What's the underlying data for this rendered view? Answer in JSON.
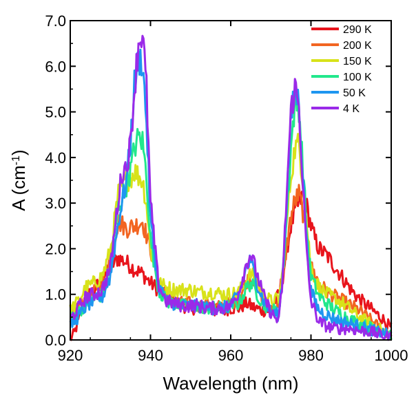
{
  "chart_data": {
    "type": "line",
    "title": "",
    "xlabel": "Wavelength (nm)",
    "ylabel_base": "A (cm",
    "ylabel_sup": "-1",
    "ylabel_close": ")",
    "xlim": [
      920,
      1000
    ],
    "ylim": [
      0,
      7
    ],
    "xticks": [
      920,
      940,
      960,
      980,
      1000
    ],
    "xtick_labels": [
      "920",
      "940",
      "960",
      "980",
      "1000"
    ],
    "yticks": [
      0,
      1,
      2,
      3,
      4,
      5,
      6,
      7
    ],
    "ytick_labels": [
      "0.0",
      "1.0",
      "2.0",
      "3.0",
      "4.0",
      "5.0",
      "6.0",
      "7.0"
    ],
    "grid": false,
    "legend_position": "top-right",
    "series": [
      {
        "name": "290 K",
        "color": "#e8141c",
        "x": [
          920,
          921,
          922,
          923,
          924,
          926,
          928,
          930,
          932,
          934,
          936,
          938,
          940,
          942,
          944,
          946,
          948,
          950,
          952,
          954,
          956,
          958,
          960,
          962,
          964,
          966,
          968,
          970,
          972,
          973,
          974,
          975,
          976,
          977,
          978,
          979,
          980,
          981,
          982,
          984,
          986,
          988,
          990,
          992,
          994,
          996,
          998,
          1000
        ],
        "y": [
          0.0,
          0.15,
          0.4,
          0.7,
          0.95,
          1.1,
          1.35,
          1.6,
          1.8,
          1.7,
          1.55,
          1.45,
          1.25,
          1.1,
          0.95,
          0.8,
          0.75,
          0.7,
          0.7,
          0.7,
          0.65,
          0.65,
          0.7,
          0.7,
          0.8,
          0.7,
          0.65,
          0.65,
          1.0,
          1.4,
          2.0,
          2.5,
          2.8,
          3.0,
          3.15,
          2.9,
          2.5,
          2.2,
          2.0,
          1.85,
          1.6,
          1.35,
          1.1,
          0.9,
          0.75,
          0.6,
          0.45,
          0.25
        ]
      },
      {
        "name": "200 K",
        "color": "#f26522",
        "x": [
          920,
          921,
          922,
          924,
          926,
          928,
          930,
          932,
          934,
          936,
          938,
          940,
          942,
          944,
          946,
          948,
          950,
          952,
          954,
          956,
          958,
          960,
          962,
          964,
          966,
          968,
          970,
          972,
          973,
          974,
          975,
          976,
          977,
          978,
          979,
          980,
          982,
          984,
          986,
          988,
          990,
          992,
          994,
          996,
          998,
          1000
        ],
        "y": [
          0.45,
          0.6,
          0.75,
          0.9,
          1.05,
          1.3,
          1.9,
          2.6,
          2.45,
          2.5,
          2.6,
          2.0,
          1.3,
          1.0,
          0.85,
          0.8,
          0.8,
          0.75,
          0.75,
          0.7,
          0.75,
          0.8,
          0.9,
          1.3,
          1.35,
          0.9,
          0.7,
          0.8,
          1.3,
          2.1,
          2.7,
          3.05,
          3.2,
          2.8,
          2.2,
          1.6,
          1.25,
          1.05,
          0.95,
          0.85,
          0.75,
          0.65,
          0.5,
          0.35,
          0.2,
          0.1
        ]
      },
      {
        "name": "150 K",
        "color": "#d8e21a",
        "x": [
          920,
          922,
          924,
          926,
          928,
          930,
          932,
          934,
          935,
          936,
          937,
          938,
          939,
          940,
          942,
          944,
          946,
          948,
          950,
          952,
          954,
          956,
          958,
          960,
          962,
          964,
          965,
          966,
          968,
          970,
          972,
          973,
          974,
          975,
          976,
          977,
          978,
          979,
          980,
          982,
          984,
          986,
          988,
          990,
          992,
          994,
          996,
          998,
          1000
        ],
        "y": [
          0.65,
          0.85,
          1.15,
          1.25,
          1.4,
          1.95,
          3.2,
          3.5,
          3.55,
          3.7,
          3.6,
          3.5,
          3.0,
          2.0,
          1.25,
          1.15,
          1.1,
          1.1,
          1.1,
          1.05,
          1.05,
          1.05,
          1.0,
          1.0,
          1.05,
          1.3,
          1.45,
          1.35,
          1.0,
          0.85,
          0.9,
          1.5,
          2.6,
          3.6,
          4.2,
          4.3,
          3.5,
          2.5,
          1.6,
          1.15,
          1.0,
          0.9,
          0.8,
          0.65,
          0.5,
          0.4,
          0.3,
          0.2,
          0.1
        ]
      },
      {
        "name": "100 K",
        "color": "#22e88c",
        "x": [
          920,
          922,
          924,
          926,
          928,
          930,
          932,
          934,
          935,
          936,
          937,
          938,
          939,
          940,
          942,
          944,
          946,
          948,
          950,
          952,
          954,
          956,
          958,
          960,
          962,
          964,
          965,
          966,
          968,
          970,
          972,
          973,
          974,
          975,
          976,
          977,
          978,
          979,
          980,
          982,
          984,
          986,
          988,
          990,
          992,
          994,
          996,
          998,
          1000
        ],
        "y": [
          0.45,
          0.6,
          0.8,
          0.9,
          1.0,
          1.6,
          2.9,
          3.4,
          3.7,
          4.2,
          4.45,
          4.35,
          3.6,
          2.2,
          1.1,
          0.85,
          0.8,
          0.75,
          0.75,
          0.75,
          0.7,
          0.7,
          0.7,
          0.75,
          0.8,
          1.15,
          1.25,
          1.1,
          0.8,
          0.65,
          0.65,
          1.4,
          2.8,
          4.2,
          5.2,
          5.1,
          3.8,
          2.3,
          1.4,
          0.95,
          0.8,
          0.65,
          0.55,
          0.45,
          0.35,
          0.3,
          0.25,
          0.2,
          0.1
        ]
      },
      {
        "name": "50 K",
        "color": "#1e96f0",
        "x": [
          920,
          922,
          924,
          926,
          928,
          930,
          932,
          934,
          935,
          936,
          937,
          938,
          939,
          940,
          942,
          944,
          946,
          948,
          950,
          952,
          954,
          956,
          958,
          960,
          962,
          964,
          965,
          966,
          968,
          970,
          972,
          973,
          974,
          975,
          976,
          977,
          978,
          979,
          980,
          982,
          984,
          986,
          988,
          990,
          992,
          994,
          996,
          998,
          1000
        ],
        "y": [
          0.3,
          0.5,
          0.75,
          0.85,
          0.95,
          1.4,
          2.6,
          3.5,
          4.3,
          5.6,
          6.15,
          6.1,
          4.8,
          2.6,
          1.2,
          0.85,
          0.8,
          0.75,
          0.75,
          0.75,
          0.7,
          0.7,
          0.7,
          0.75,
          1.0,
          1.6,
          1.75,
          1.4,
          0.9,
          0.6,
          0.55,
          1.5,
          3.2,
          4.8,
          5.5,
          5.2,
          3.6,
          2.0,
          1.05,
          0.65,
          0.55,
          0.45,
          0.4,
          0.35,
          0.3,
          0.25,
          0.2,
          0.15,
          0.1
        ]
      },
      {
        "name": "4 K",
        "color": "#9a2ae8",
        "x": [
          920,
          922,
          924,
          926,
          928,
          930,
          932,
          933,
          934,
          935,
          936,
          937,
          938,
          939,
          940,
          942,
          944,
          946,
          948,
          950,
          952,
          954,
          956,
          958,
          960,
          962,
          964,
          965,
          966,
          968,
          970,
          972,
          973,
          974,
          975,
          976,
          977,
          978,
          979,
          980,
          982,
          984,
          986,
          988,
          990,
          992,
          994,
          996,
          998,
          1000
        ],
        "y": [
          0.45,
          0.7,
          0.95,
          1.0,
          1.1,
          1.6,
          3.1,
          3.7,
          3.8,
          4.3,
          5.5,
          6.5,
          6.75,
          5.5,
          3.0,
          1.2,
          0.85,
          0.8,
          0.75,
          0.75,
          0.75,
          0.7,
          0.7,
          0.7,
          0.75,
          1.05,
          1.7,
          1.9,
          1.6,
          1.0,
          0.6,
          0.4,
          1.4,
          3.3,
          5.0,
          5.55,
          5.1,
          3.4,
          1.8,
          0.85,
          0.4,
          0.3,
          0.25,
          0.25,
          0.25,
          0.2,
          0.2,
          0.15,
          0.1,
          0.05
        ]
      }
    ]
  }
}
